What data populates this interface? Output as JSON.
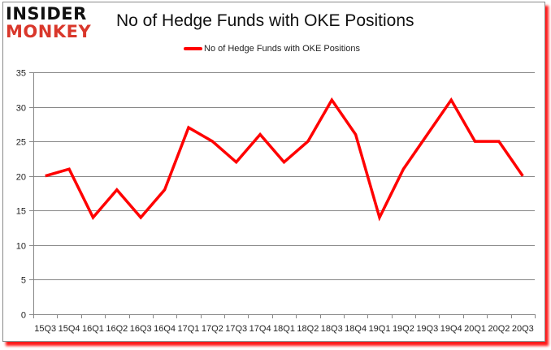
{
  "branding": {
    "logo_top": "INSIDER",
    "logo_bottom": "MONKEY"
  },
  "chart_data": {
    "type": "line",
    "title": "No of Hedge Funds with OKE Positions",
    "xlabel": "",
    "ylabel": "",
    "ylim": [
      0,
      35
    ],
    "yticks": [
      0,
      5,
      10,
      15,
      20,
      25,
      30,
      35
    ],
    "grid": true,
    "legend_position": "top",
    "categories": [
      "15Q3",
      "15Q4",
      "16Q1",
      "16Q2",
      "16Q3",
      "16Q4",
      "17Q1",
      "17Q2",
      "17Q3",
      "17Q4",
      "18Q1",
      "18Q2",
      "18Q3",
      "18Q4",
      "19Q1",
      "19Q2",
      "19Q3",
      "19Q4",
      "20Q1",
      "20Q2",
      "20Q3"
    ],
    "series": [
      {
        "name": "No of Hedge Funds with OKE Positions",
        "color": "#ff0000",
        "values": [
          20,
          21,
          14,
          18,
          14,
          18,
          27,
          25,
          22,
          26,
          22,
          25,
          31,
          26,
          14,
          21,
          26,
          31,
          25,
          25,
          20
        ]
      }
    ]
  },
  "colors": {
    "line": "#ff0000",
    "grid": "#868686",
    "logo_red": "#d9372b",
    "shadow": "#ff1a1a"
  }
}
